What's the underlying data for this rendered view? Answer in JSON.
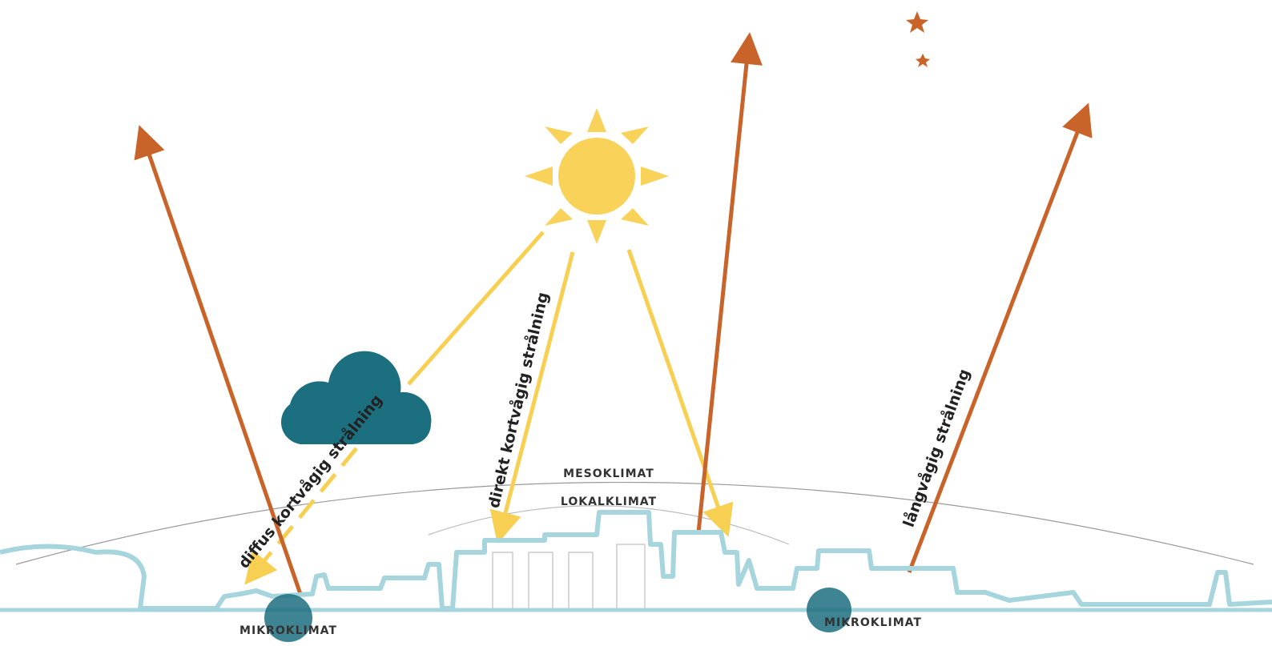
{
  "radiation": {
    "diffuse": "diffus kortvågig strålning",
    "direct": "direkt kortvågig strålning",
    "longwave": "långvågig strålning"
  },
  "scales": {
    "meso": "MESOKLIMAT",
    "local": "LOKALKLIMAT",
    "micro": [
      "MIKROKLIMAT",
      "MIKROKLIMAT"
    ]
  }
}
